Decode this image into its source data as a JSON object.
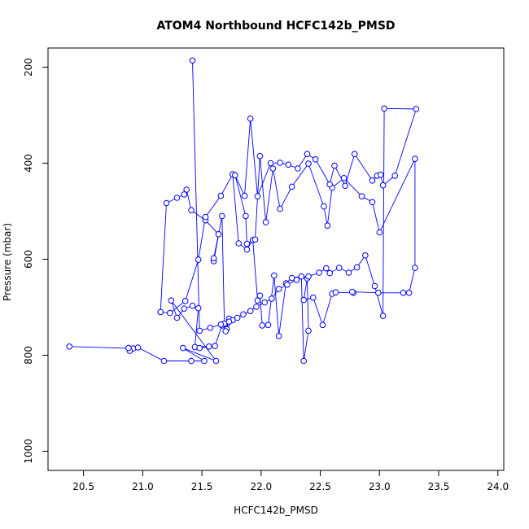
{
  "chart_data": {
    "type": "line",
    "title": "ATOM4 Northbound HCFC142b_PMSD",
    "xlabel": "HCFC142b_PMSD",
    "ylabel": "Pressure (mbar)",
    "xlim": [
      20.2,
      24.05
    ],
    "ylim": [
      1040,
      160
    ],
    "y_inverted": true,
    "x_ticks": [
      20.5,
      21.0,
      21.5,
      22.0,
      22.5,
      23.0,
      23.5,
      24.0
    ],
    "x_tick_labels": [
      "20.5",
      "21.0",
      "21.5",
      "22.0",
      "22.5",
      "23.0",
      "23.5",
      "24.0"
    ],
    "y_ticks": [
      200,
      400,
      600,
      800,
      1000
    ],
    "y_tick_labels": [
      "200",
      "400",
      "600",
      "800",
      "1000"
    ],
    "grid": false,
    "legend": "none",
    "series_color": "#0000ff",
    "series": [
      {
        "x": [
          20.38,
          20.92,
          20.89,
          20.88,
          20.96,
          21.18,
          21.41,
          21.52,
          21.34,
          21.62,
          21.24,
          21.29,
          21.35,
          21.42,
          21.47,
          21.44,
          21.56,
          21.48,
          21.61,
          21.67,
          21.71,
          21.73,
          21.7,
          21.76,
          21.69,
          21.67,
          21.6,
          21.6,
          21.64,
          21.53,
          21.41,
          21.37,
          21.35,
          21.29,
          21.2,
          21.15,
          21.23,
          21.36,
          21.47,
          21.53,
          21.66,
          21.76,
          21.81,
          21.88,
          21.93,
          21.97,
          21.99,
          22.01,
          22.06,
          22.11,
          22.15,
          22.21,
          22.26,
          22.34,
          22.36,
          22.4,
          22.39,
          22.36,
          22.44,
          22.52,
          22.6,
          22.63,
          22.78,
          22.77,
          22.99,
          23.2,
          23.25,
          23.3,
          23.3,
          23.0,
          22.94,
          22.85,
          22.7,
          22.6,
          22.56,
          22.53,
          22.4,
          22.26,
          22.16,
          22.1,
          22.04,
          21.99,
          21.95,
          21.88,
          21.87,
          21.78,
          21.86,
          21.91,
          21.97,
          22.08,
          22.16,
          22.23,
          22.31,
          22.39,
          22.46,
          22.58,
          22.62,
          22.71,
          22.79,
          22.94,
          22.98,
          23.01,
          23.03,
          23.13,
          23.31,
          23.04,
          23.03,
          22.96,
          22.88,
          22.81,
          22.74,
          22.66,
          22.58,
          22.55,
          22.49,
          22.4,
          22.3,
          22.22,
          22.15,
          22.09,
          22.03,
          21.96,
          21.91,
          21.85,
          21.8,
          21.73,
          21.66,
          21.57,
          21.48,
          21.42
        ],
        "y": [
          782,
          786,
          791,
          785,
          784,
          812,
          812,
          812,
          785,
          812,
          686,
          722,
          703,
          697,
          702,
          783,
          782,
          785,
          781,
          738,
          746,
          724,
          750,
          727,
          734,
          510,
          604,
          598,
          548,
          519,
          498,
          455,
          465,
          472,
          483,
          710,
          712,
          687,
          601,
          512,
          468,
          423,
          567,
          580,
          560,
          686,
          676,
          738,
          737,
          634,
          760,
          650,
          639,
          636,
          812,
          749,
          640,
          685,
          680,
          737,
          672,
          669,
          670,
          668,
          670,
          670,
          670,
          618,
          391,
          544,
          481,
          469,
          431,
          451,
          530,
          490,
          401,
          449,
          495,
          411,
          523,
          385,
          559,
          568,
          510,
          425,
          468,
          307,
          469,
          400,
          399,
          403,
          411,
          381,
          392,
          444,
          405,
          447,
          381,
          436,
          426,
          424,
          446,
          426,
          287,
          286,
          718,
          656,
          592,
          617,
          628,
          618,
          629,
          619,
          628,
          636,
          643,
          653,
          662,
          682,
          690,
          699,
          708,
          715,
          722,
          730,
          736,
          743,
          749,
          186
        ]
      }
    ]
  }
}
